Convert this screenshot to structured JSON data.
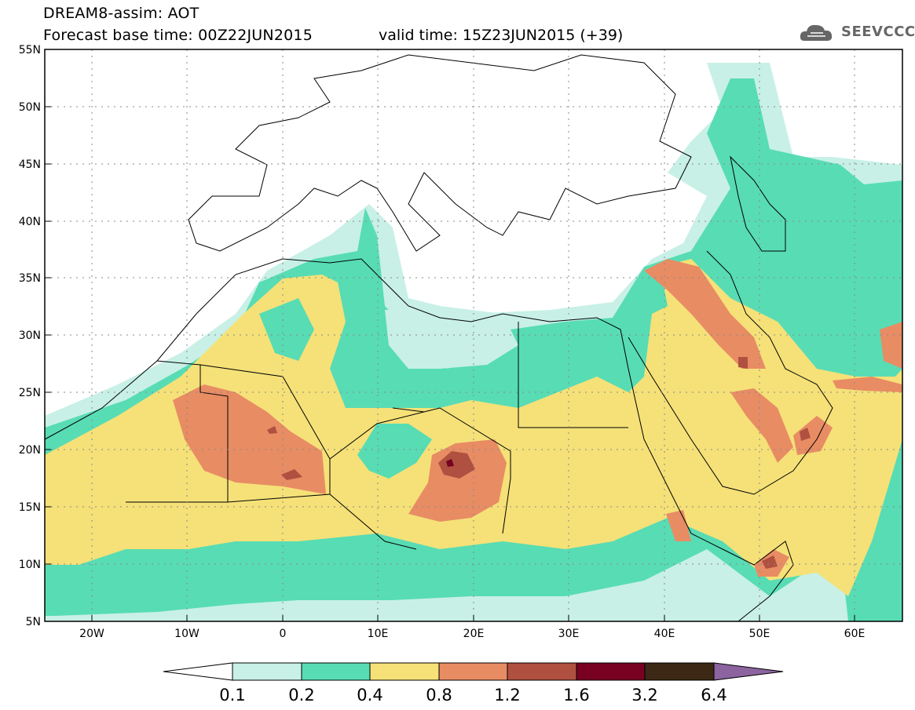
{
  "header": {
    "title": "DREAM8-assim: AOT",
    "base_time": "Forecast base time: 00Z22JUN2015",
    "valid_time": "valid time: 15Z23JUN2015 (+39)"
  },
  "logo": {
    "text": "SEEVCCC",
    "icon": "cloud-icon"
  },
  "map": {
    "lat_labels": [
      "55N",
      "50N",
      "45N",
      "40N",
      "35N",
      "30N",
      "25N",
      "20N",
      "15N",
      "10N",
      "5N"
    ],
    "lon_labels": [
      "20W",
      "10W",
      "0",
      "10E",
      "20E",
      "30E",
      "40E",
      "50E",
      "60E"
    ],
    "lon_range": [
      -25,
      65
    ],
    "lat_range": [
      5,
      55
    ],
    "grid": "dotted"
  },
  "colorbar": {
    "colors": [
      "#ffffff",
      "#c8f0e6",
      "#58dcb4",
      "#f5e178",
      "#e88c64",
      "#b05040",
      "#780020",
      "#3c2814",
      "#8c64a0"
    ],
    "labels": [
      "0.1",
      "0.2",
      "0.4",
      "0.8",
      "1.2",
      "1.6",
      "3.2",
      "6.4"
    ]
  }
}
